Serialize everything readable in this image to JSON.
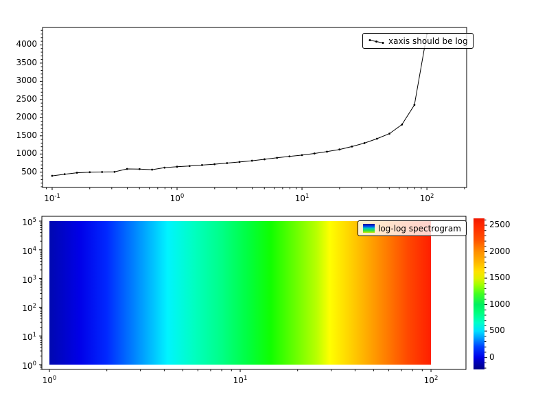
{
  "figure": {
    "background": "#ffffff"
  },
  "chart_data": [
    {
      "type": "line",
      "legend_label": "xaxis should be log",
      "legend_position": "upper right",
      "xscale": "log",
      "yscale": "linear",
      "xlim": [
        0.0838,
        208
      ],
      "ylim": [
        80,
        4480
      ],
      "x": [
        0.1,
        0.126,
        0.158,
        0.2,
        0.251,
        0.316,
        0.398,
        0.501,
        0.631,
        0.794,
        1.0,
        1.259,
        1.585,
        1.995,
        2.512,
        3.162,
        3.981,
        5.012,
        6.31,
        7.943,
        10.0,
        12.589,
        15.849,
        19.953,
        25.119,
        31.623,
        39.811,
        50.119,
        63.096,
        79.433,
        100.0
      ],
      "y": [
        400,
        445,
        485,
        500,
        505,
        510,
        590,
        585,
        570,
        625,
        650,
        670,
        695,
        720,
        750,
        780,
        815,
        855,
        895,
        935,
        970,
        1015,
        1065,
        1125,
        1205,
        1300,
        1420,
        1560,
        1810,
        2350,
        4300
      ],
      "line_color": "#000000",
      "marker": "point",
      "x_major_ticks": [
        0.1,
        1,
        10,
        100
      ],
      "x_major_labels": [
        "10^-1",
        "10^0",
        "10^1",
        "10^2"
      ],
      "y_major_ticks": [
        500,
        1000,
        1500,
        2000,
        2500,
        3000,
        3500,
        4000
      ],
      "y_major_labels": [
        "500",
        "1000",
        "1500",
        "2000",
        "2500",
        "3000",
        "3500",
        "4000"
      ],
      "y_minor_step": 100,
      "grid": false
    },
    {
      "type": "heatmap",
      "legend_label": "log-log spectrogram",
      "legend_position": "upper right",
      "xscale": "log",
      "yscale": "log",
      "xlim": [
        0.913,
        152.5
      ],
      "ylim": [
        0.68,
        147000
      ],
      "extent": {
        "x": [
          1,
          100
        ],
        "y": [
          1,
          100000
        ]
      },
      "x_major_ticks": [
        1,
        10,
        100
      ],
      "x_major_labels": [
        "10^0",
        "10^1",
        "10^2"
      ],
      "y_major_ticks": [
        1,
        10,
        100,
        1000,
        10000,
        100000
      ],
      "y_major_labels": [
        "10^0",
        "10^1",
        "10^2",
        "10^3",
        "10^4",
        "10^5"
      ],
      "gradient_stops": [
        {
          "pos": 0.0,
          "color": "#0008b0"
        },
        {
          "pos": 0.08,
          "color": "#0000e8"
        },
        {
          "pos": 0.15,
          "color": "#0028ff"
        },
        {
          "pos": 0.22,
          "color": "#0080ff"
        },
        {
          "pos": 0.27,
          "color": "#00c0ff"
        },
        {
          "pos": 0.31,
          "color": "#00f4ff"
        },
        {
          "pos": 0.38,
          "color": "#00ffc0"
        },
        {
          "pos": 0.45,
          "color": "#00ff88"
        },
        {
          "pos": 0.52,
          "color": "#00ff40"
        },
        {
          "pos": 0.58,
          "color": "#10ff00"
        },
        {
          "pos": 0.65,
          "color": "#70ff00"
        },
        {
          "pos": 0.7,
          "color": "#b8ff00"
        },
        {
          "pos": 0.735,
          "color": "#ffff00"
        },
        {
          "pos": 0.8,
          "color": "#ffc800"
        },
        {
          "pos": 0.88,
          "color": "#ff8000"
        },
        {
          "pos": 0.94,
          "color": "#ff4800"
        },
        {
          "pos": 1.0,
          "color": "#ff1e00"
        }
      ],
      "legend_swatch": [
        "#000890",
        "#0040f0",
        "#00c8c0",
        "#30e040",
        "#c0e800"
      ],
      "colorbar": {
        "colormap": "jet",
        "vmin": -225,
        "vmax": 2630,
        "major_ticks": [
          0,
          500,
          1000,
          1500,
          2000,
          2500
        ],
        "major_labels": [
          "0",
          "500",
          "1000",
          "1500",
          "2000",
          "2500"
        ],
        "minor_step": 100,
        "stops": [
          {
            "pos": 0.0,
            "color": "#000084"
          },
          {
            "pos": 0.06,
            "color": "#0000c8"
          },
          {
            "pos": 0.079,
            "color": "#0000e8"
          },
          {
            "pos": 0.15,
            "color": "#0040ff"
          },
          {
            "pos": 0.21,
            "color": "#00a0ff"
          },
          {
            "pos": 0.254,
            "color": "#00e0ff"
          },
          {
            "pos": 0.31,
            "color": "#00ffc8"
          },
          {
            "pos": 0.38,
            "color": "#00ff78"
          },
          {
            "pos": 0.429,
            "color": "#00f060"
          },
          {
            "pos": 0.5,
            "color": "#40ff20"
          },
          {
            "pos": 0.56,
            "color": "#a0ff00"
          },
          {
            "pos": 0.603,
            "color": "#e0f000"
          },
          {
            "pos": 0.65,
            "color": "#ffe000"
          },
          {
            "pos": 0.72,
            "color": "#ffb000"
          },
          {
            "pos": 0.778,
            "color": "#ff9000"
          },
          {
            "pos": 0.86,
            "color": "#ff5000"
          },
          {
            "pos": 0.953,
            "color": "#ff2800"
          },
          {
            "pos": 1.0,
            "color": "#f01800"
          }
        ]
      }
    }
  ]
}
